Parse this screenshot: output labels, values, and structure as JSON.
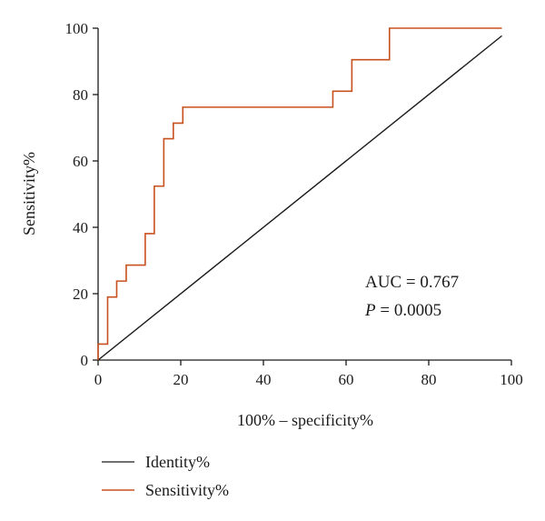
{
  "chart_data": {
    "type": "line",
    "xlabel": "100% – specificity%",
    "ylabel": "Sensitivity%",
    "xlim": [
      0,
      100
    ],
    "ylim": [
      0,
      100
    ],
    "x_ticks": [
      0,
      20,
      40,
      60,
      80,
      100
    ],
    "y_ticks": [
      0,
      20,
      40,
      60,
      80,
      100
    ],
    "grid": false,
    "legend_placement": "bottom-left",
    "annotations": {
      "auc": "AUC = 0.767",
      "p_label": "P",
      "p_value": " = 0.0005"
    },
    "series": [
      {
        "name": "Identity%",
        "color": "#1a1a1a",
        "step": false,
        "points": [
          [
            0,
            0
          ],
          [
            97.7,
            97.7
          ]
        ]
      },
      {
        "name": "Sensitivity%",
        "color": "#c8501e",
        "step": true,
        "points": [
          [
            0,
            0
          ],
          [
            0,
            4.8
          ],
          [
            2.3,
            4.8
          ],
          [
            2.3,
            19.0
          ],
          [
            4.5,
            19.0
          ],
          [
            4.5,
            23.8
          ],
          [
            6.8,
            23.8
          ],
          [
            6.8,
            28.6
          ],
          [
            11.4,
            28.6
          ],
          [
            11.4,
            38.1
          ],
          [
            13.6,
            38.1
          ],
          [
            13.6,
            52.4
          ],
          [
            15.9,
            52.4
          ],
          [
            15.9,
            66.7
          ],
          [
            18.2,
            66.7
          ],
          [
            18.2,
            71.4
          ],
          [
            20.5,
            71.4
          ],
          [
            20.5,
            76.2
          ],
          [
            56.8,
            76.2
          ],
          [
            56.8,
            81.0
          ],
          [
            61.4,
            81.0
          ],
          [
            61.4,
            90.5
          ],
          [
            70.5,
            90.5
          ],
          [
            70.5,
            100
          ],
          [
            97.7,
            100
          ]
        ]
      }
    ]
  }
}
